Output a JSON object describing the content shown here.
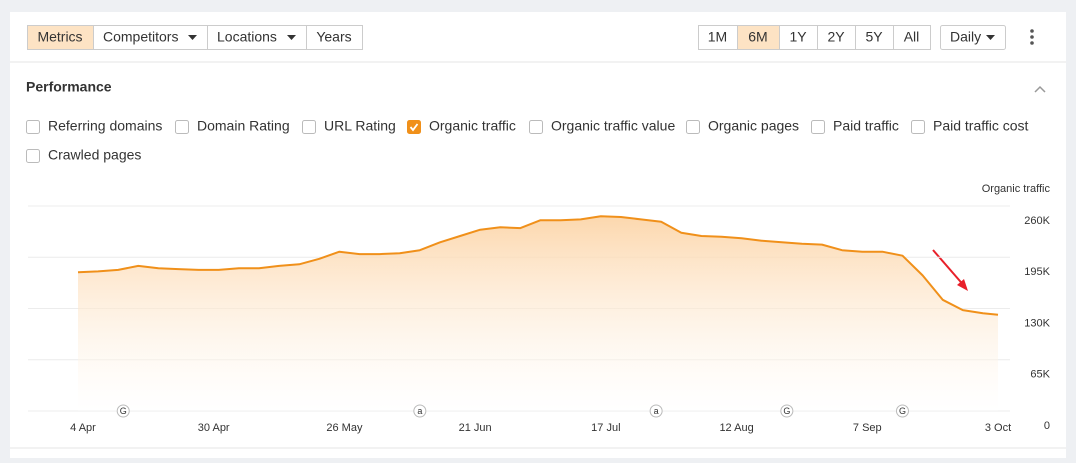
{
  "tabs": [
    {
      "label": "Metrics",
      "active": true
    },
    {
      "label": "Competitors",
      "active": false
    },
    {
      "label": "Locations",
      "active": false
    },
    {
      "label": "Years",
      "active": false
    }
  ],
  "ranges": [
    {
      "label": "1M",
      "active": false
    },
    {
      "label": "6M",
      "active": true
    },
    {
      "label": "1Y",
      "active": false
    },
    {
      "label": "2Y",
      "active": false
    },
    {
      "label": "5Y",
      "active": false
    },
    {
      "label": "All",
      "active": false
    }
  ],
  "interval": "Daily",
  "section_title": "Performance",
  "metrics": [
    {
      "label": "Referring domains",
      "checked": false
    },
    {
      "label": "Domain Rating",
      "checked": false
    },
    {
      "label": "URL Rating",
      "checked": false
    },
    {
      "label": "Organic traffic",
      "checked": true
    },
    {
      "label": "Organic traffic value",
      "checked": false
    },
    {
      "label": "Organic pages",
      "checked": false
    },
    {
      "label": "Paid traffic",
      "checked": false
    },
    {
      "label": "Paid traffic cost",
      "checked": false
    },
    {
      "label": "Crawled pages",
      "checked": false
    }
  ],
  "chart_data": {
    "type": "area",
    "x": [
      "3 Apr",
      "7 Apr",
      "11 Apr",
      "15 Apr",
      "19 Apr",
      "23 Apr",
      "27 Apr",
      "1 May",
      "5 May",
      "9 May",
      "13 May",
      "17 May",
      "21 May",
      "25 May",
      "29 May",
      "2 Jun",
      "6 Jun",
      "10 Jun",
      "14 Jun",
      "18 Jun",
      "22 Jun",
      "26 Jun",
      "30 Jun",
      "4 Jul",
      "8 Jul",
      "12 Jul",
      "16 Jul",
      "20 Jul",
      "24 Jul",
      "28 Jul",
      "1 Aug",
      "5 Aug",
      "9 Aug",
      "13 Aug",
      "17 Aug",
      "21 Aug",
      "25 Aug",
      "29 Aug",
      "2 Sep",
      "6 Sep",
      "10 Sep",
      "14 Sep",
      "18 Sep",
      "22 Sep",
      "26 Sep",
      "30 Sep",
      "3 Oct"
    ],
    "series": [
      {
        "name": "Organic traffic",
        "color": "#f0901a",
        "values": [
          176000,
          177000,
          179000,
          184000,
          181000,
          180000,
          179000,
          179000,
          181000,
          181000,
          184000,
          186000,
          193000,
          202000,
          199000,
          199000,
          200000,
          204000,
          214000,
          222000,
          230000,
          233000,
          232000,
          242000,
          242000,
          243000,
          247000,
          246000,
          243000,
          240000,
          226000,
          222000,
          221000,
          219000,
          216000,
          214000,
          212000,
          211000,
          204000,
          202000,
          202000,
          197000,
          172000,
          141000,
          128000,
          124000,
          122000
        ]
      }
    ],
    "ylim": [
      0,
      260000
    ],
    "yticks": [
      0,
      {
        "value": 65000,
        "label": "65K"
      },
      {
        "value": 130000,
        "label": "130K"
      },
      {
        "value": 195000,
        "label": "195K"
      },
      {
        "value": 260000,
        "label": "260K"
      }
    ],
    "xticks": [
      "4 Apr",
      "30 Apr",
      "26 May",
      "21 Jun",
      "17 Jul",
      "12 Aug",
      "7 Sep",
      "3 Oct"
    ],
    "grid": true,
    "annotations": [
      {
        "x": "12 Apr",
        "label": "G"
      },
      {
        "x": "10 Jun",
        "label": "a"
      },
      {
        "x": "27 Jul",
        "label": "a"
      },
      {
        "x": "22 Aug",
        "label": "G"
      },
      {
        "x": "14 Sep",
        "label": "G"
      }
    ]
  }
}
